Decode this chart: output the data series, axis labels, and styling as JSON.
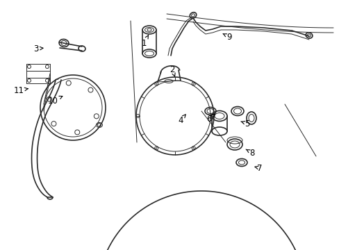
{
  "background_color": "#ffffff",
  "line_color": "#2a2a2a",
  "label_color": "#000000",
  "lw_main": 1.2,
  "lw_thin": 0.7,
  "annotations": [
    [
      "1",
      207,
      298,
      214,
      310
    ],
    [
      "2",
      248,
      260,
      252,
      249
    ],
    [
      "3",
      52,
      290,
      66,
      291
    ],
    [
      "4",
      260,
      187,
      268,
      196
    ],
    [
      "5",
      356,
      182,
      344,
      186
    ],
    [
      "6",
      301,
      189,
      310,
      196
    ],
    [
      "7",
      374,
      118,
      366,
      120
    ],
    [
      "8",
      363,
      140,
      354,
      145
    ],
    [
      "9",
      330,
      307,
      318,
      313
    ],
    [
      "10",
      76,
      215,
      91,
      222
    ],
    [
      "11",
      27,
      230,
      44,
      233
    ]
  ]
}
